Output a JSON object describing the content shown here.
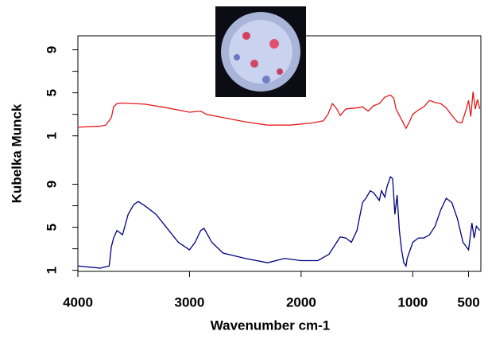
{
  "chart_data": [
    {
      "type": "line",
      "ylabel": "Kubelka Munck",
      "color": "#e41a1c",
      "xlim": [
        4000,
        390
      ],
      "ylim": [
        -0.5,
        10.3
      ],
      "yticks": [
        1,
        5,
        9
      ],
      "yminor": [
        3,
        7
      ],
      "x": [
        4000,
        3800,
        3750,
        3700,
        3680,
        3650,
        3600,
        3400,
        3200,
        3000,
        2900,
        2850,
        2700,
        2500,
        2300,
        2100,
        1900,
        1800,
        1760,
        1720,
        1680,
        1650,
        1600,
        1500,
        1450,
        1400,
        1350,
        1300,
        1250,
        1200,
        1170,
        1150,
        1100,
        1060,
        1030,
        1000,
        950,
        900,
        850,
        800,
        750,
        700,
        650,
        600,
        560,
        520,
        500,
        480,
        460,
        440,
        420,
        400
      ],
      "values": [
        1.8,
        1.9,
        2.0,
        2.7,
        3.7,
        4.0,
        4.05,
        3.95,
        3.6,
        3.2,
        3.3,
        3.0,
        2.7,
        2.3,
        2.0,
        2.0,
        2.2,
        2.4,
        3.0,
        4.0,
        3.5,
        2.9,
        3.5,
        3.6,
        3.7,
        3.3,
        3.8,
        4.0,
        4.6,
        4.8,
        4.5,
        3.5,
        2.5,
        1.7,
        2.3,
        3.0,
        3.4,
        3.7,
        4.3,
        4.1,
        4.0,
        3.6,
        2.9,
        2.3,
        2.2,
        3.5,
        4.3,
        2.8,
        5.1,
        3.5,
        4.4,
        3.5
      ]
    },
    {
      "type": "line",
      "xlabel": "Wavenumber cm-1",
      "color": "#000080",
      "xlim": [
        4000,
        390
      ],
      "ylim": [
        0.9,
        12
      ],
      "yticks": [
        1,
        5,
        9
      ],
      "yminor": [
        3,
        7
      ],
      "xticks": [
        4000,
        3000,
        2000,
        1000,
        500
      ],
      "x": [
        4000,
        3800,
        3720,
        3700,
        3680,
        3650,
        3600,
        3550,
        3500,
        3460,
        3400,
        3300,
        3200,
        3100,
        3000,
        2950,
        2900,
        2870,
        2800,
        2700,
        2500,
        2300,
        2150,
        2000,
        1850,
        1750,
        1650,
        1600,
        1550,
        1500,
        1450,
        1420,
        1380,
        1350,
        1300,
        1280,
        1250,
        1230,
        1200,
        1180,
        1160,
        1140,
        1120,
        1100,
        1080,
        1060,
        1050,
        1000,
        950,
        900,
        850,
        800,
        750,
        700,
        650,
        600,
        550,
        500,
        470,
        450,
        430,
        400
      ],
      "values": [
        1.4,
        1.2,
        1.4,
        3.2,
        4.0,
        4.7,
        4.3,
        6.2,
        7.1,
        7.4,
        7.0,
        6.2,
        4.9,
        3.6,
        2.9,
        3.6,
        4.7,
        4.9,
        3.6,
        2.6,
        2.1,
        1.7,
        2.1,
        1.9,
        1.9,
        2.5,
        4.1,
        4.0,
        3.6,
        4.7,
        7.3,
        7.7,
        8.4,
        8.2,
        7.5,
        8.4,
        7.8,
        8.8,
        9.7,
        9.5,
        6.2,
        8.0,
        4.7,
        2.9,
        1.7,
        1.4,
        2.1,
        3.6,
        4.0,
        4.0,
        4.3,
        5.1,
        6.6,
        7.7,
        7.3,
        5.8,
        3.6,
        2.9,
        5.4,
        4.0,
        5.1,
        4.7
      ]
    }
  ]
}
